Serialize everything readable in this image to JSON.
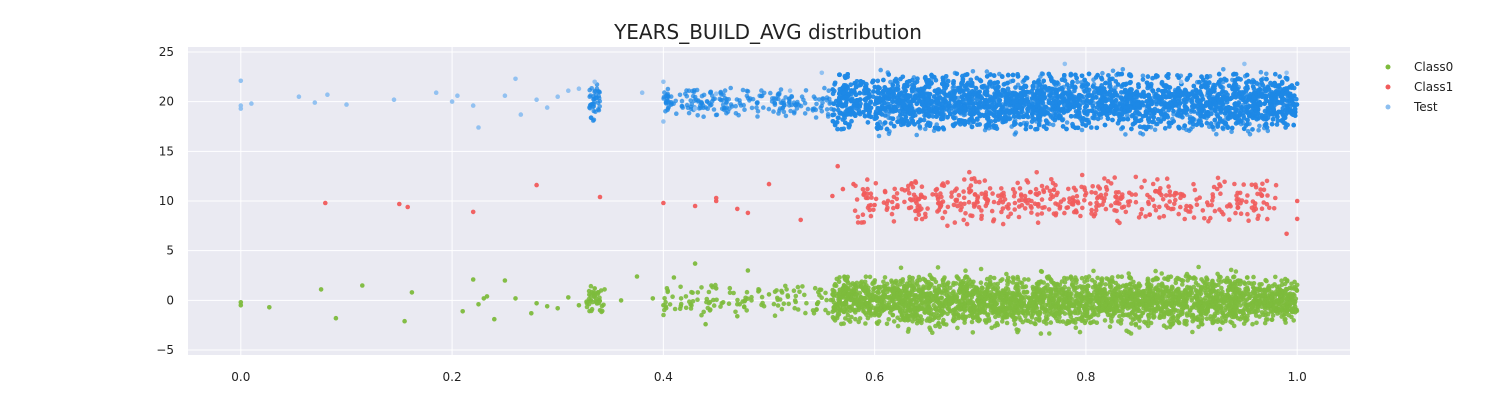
{
  "chart_data": {
    "type": "scatter",
    "title": "YEARS_BUILD_AVG distribution",
    "xlabel": "",
    "ylabel": "",
    "xlim": [
      -0.05,
      1.05
    ],
    "ylim": [
      -5.5,
      25.5
    ],
    "x_ticks": [
      0.0,
      0.2,
      0.4,
      0.6,
      0.8,
      1.0
    ],
    "x_tick_labels": [
      "0.0",
      "0.2",
      "0.4",
      "0.6",
      "0.8",
      "1.0"
    ],
    "y_ticks": [
      -5,
      0,
      5,
      10,
      15,
      20,
      25
    ],
    "y_tick_labels": [
      "−5",
      "0",
      "5",
      "10",
      "15",
      "20",
      "25"
    ],
    "grid": true,
    "legend_position": "right",
    "background": "#eaeaf2",
    "series": [
      {
        "name": "Class0",
        "color": "#7dbb3c",
        "center": 0,
        "points": [
          [
            0.0,
            -0.2
          ],
          [
            0.0,
            -0.5
          ],
          [
            0.027,
            -0.7
          ],
          [
            0.076,
            1.1
          ],
          [
            0.09,
            -1.8
          ],
          [
            0.115,
            1.5
          ],
          [
            0.155,
            -2.1
          ],
          [
            0.162,
            0.8
          ],
          [
            0.21,
            -1.1
          ],
          [
            0.22,
            2.1
          ],
          [
            0.225,
            -0.4
          ],
          [
            0.23,
            0.2
          ],
          [
            0.233,
            0.4
          ],
          [
            0.24,
            -1.9
          ],
          [
            0.25,
            2.0
          ],
          [
            0.26,
            0.2
          ],
          [
            0.275,
            -1.3
          ],
          [
            0.28,
            -0.3
          ],
          [
            0.29,
            -0.6
          ],
          [
            0.3,
            -0.8
          ],
          [
            0.31,
            0.3
          ],
          [
            0.32,
            -0.5
          ],
          [
            0.335,
            1.2
          ],
          [
            0.34,
            -1.0
          ],
          [
            0.36,
            0.0
          ],
          [
            0.375,
            2.4
          ],
          [
            0.39,
            0.2
          ],
          [
            0.4,
            -0.5
          ],
          [
            0.41,
            2.3
          ],
          [
            0.43,
            3.7
          ],
          [
            0.44,
            -2.4
          ],
          [
            0.45,
            1.2
          ],
          [
            0.47,
            -1.6
          ],
          [
            0.48,
            3.0
          ],
          [
            0.49,
            0.9
          ],
          [
            0.5,
            0.6
          ]
        ],
        "dense_bands": [
          {
            "x": [
              0.325,
              0.345
            ],
            "y": [
              -1.5,
              1.6
            ],
            "count": 40
          },
          {
            "x": [
              0.4,
              0.56
            ],
            "y": [
              -1.6,
              1.6
            ],
            "count": 120
          },
          {
            "x": [
              0.56,
              1.0
            ],
            "y": [
              -2.4,
              2.4
            ],
            "count": 2600
          },
          {
            "x": [
              0.62,
              0.95
            ],
            "y": [
              -3.4,
              3.4
            ],
            "count": 400
          }
        ]
      },
      {
        "name": "Class1",
        "color": "#f15b5b",
        "center": 10,
        "points": [
          [
            0.08,
            9.8
          ],
          [
            0.15,
            9.7
          ],
          [
            0.158,
            9.4
          ],
          [
            0.22,
            8.9
          ],
          [
            0.28,
            11.6
          ],
          [
            0.34,
            10.4
          ],
          [
            0.4,
            9.8
          ],
          [
            0.43,
            9.5
          ],
          [
            0.45,
            10.3
          ],
          [
            0.45,
            10.0
          ],
          [
            0.47,
            9.2
          ],
          [
            0.48,
            8.8
          ],
          [
            0.5,
            11.7
          ],
          [
            0.53,
            8.1
          ],
          [
            0.56,
            10.5
          ],
          [
            0.565,
            13.5
          ],
          [
            0.57,
            11.2
          ],
          [
            0.58,
            11.7
          ],
          [
            0.59,
            10.7
          ],
          [
            0.6,
            9.6
          ],
          [
            0.61,
            10.9
          ],
          [
            0.99,
            6.7
          ],
          [
            1.0,
            10.0
          ],
          [
            1.0,
            8.2
          ]
        ],
        "dense_bands": [
          {
            "x": [
              0.58,
              0.98
            ],
            "y": [
              7.8,
              12.4
            ],
            "count": 420
          },
          {
            "x": [
              0.62,
              0.88
            ],
            "y": [
              7.2,
              12.9
            ],
            "count": 60
          }
        ]
      },
      {
        "name": "Test",
        "color": "#8dbff0",
        "dense_color": "#1e88e5",
        "center": 20,
        "points": [
          [
            0.0,
            22.1
          ],
          [
            0.0,
            19.3
          ],
          [
            0.0,
            19.6
          ],
          [
            0.01,
            19.8
          ],
          [
            0.055,
            20.5
          ],
          [
            0.07,
            19.9
          ],
          [
            0.082,
            20.7
          ],
          [
            0.1,
            19.7
          ],
          [
            0.145,
            20.2
          ],
          [
            0.185,
            20.9
          ],
          [
            0.2,
            20.0
          ],
          [
            0.205,
            20.6
          ],
          [
            0.22,
            19.6
          ],
          [
            0.225,
            17.4
          ],
          [
            0.25,
            20.6
          ],
          [
            0.26,
            22.3
          ],
          [
            0.265,
            18.7
          ],
          [
            0.28,
            20.2
          ],
          [
            0.29,
            19.4
          ],
          [
            0.3,
            20.5
          ],
          [
            0.31,
            21.1
          ],
          [
            0.32,
            21.3
          ],
          [
            0.335,
            22.0
          ],
          [
            0.38,
            20.9
          ],
          [
            0.4,
            22.0
          ],
          [
            0.4,
            18.0
          ],
          [
            0.43,
            19.3
          ],
          [
            0.45,
            20.8
          ],
          [
            0.52,
            21.1
          ],
          [
            0.55,
            22.9
          ],
          [
            0.78,
            23.8
          ],
          [
            0.89,
            22.0
          ],
          [
            0.95,
            23.8
          ],
          [
            0.99,
            22.9
          ]
        ],
        "dense_bands": [
          {
            "x": [
              0.33,
              0.34
            ],
            "y": [
              18.0,
              22.0
            ],
            "count": 40
          },
          {
            "x": [
              0.4,
              0.56
            ],
            "y": [
              18.4,
              21.4
            ],
            "count": 220
          },
          {
            "x": [
              0.56,
              1.0
            ],
            "y": [
              17.2,
              22.8
            ],
            "count": 5200
          },
          {
            "x": [
              0.6,
              0.98
            ],
            "y": [
              16.5,
              23.3
            ],
            "count": 500
          }
        ]
      }
    ]
  }
}
